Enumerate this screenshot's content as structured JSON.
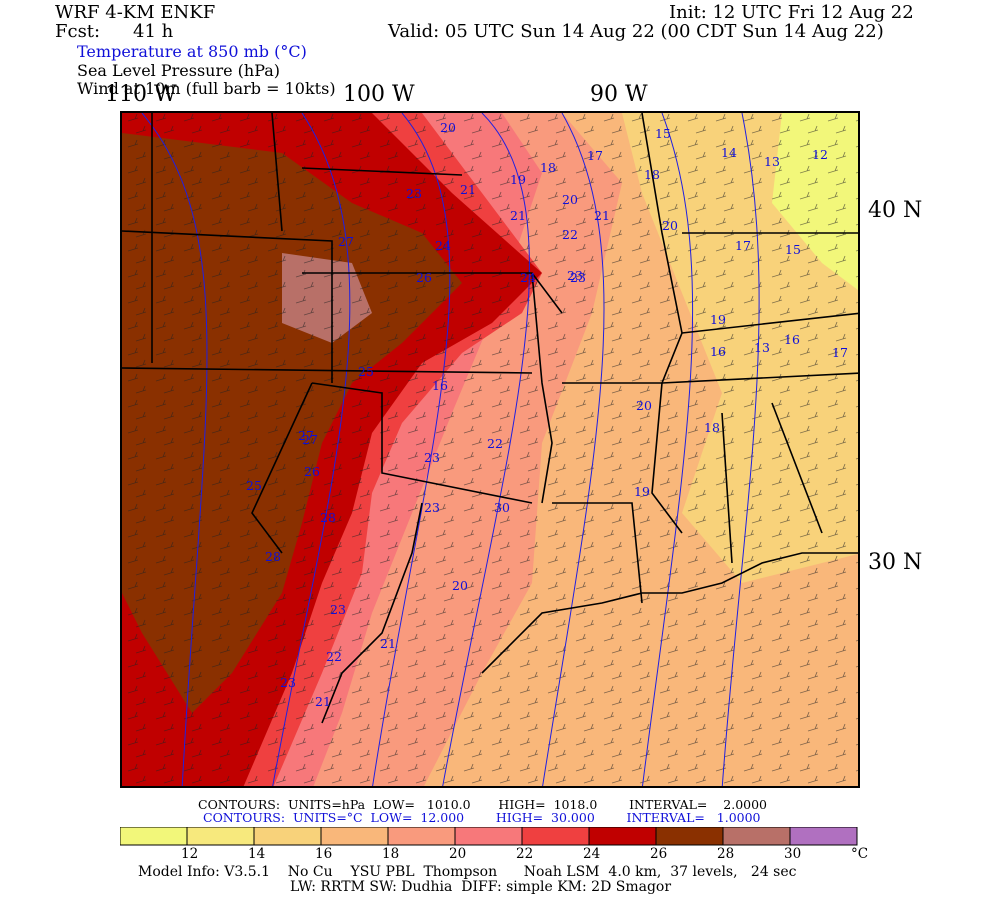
{
  "header": {
    "model": "WRF 4-KM ENKF",
    "fcst_label": "Fcst:",
    "fcst_value": "41 h",
    "init": "Init: 12 UTC Fri 12 Aug 22",
    "valid": "Valid: 05 UTC Sun 14 Aug 22 (00 CDT Sun 14 Aug 22)",
    "field1": "Temperature at 850 mb (°C)",
    "field2": "Sea Level Pressure (hPa)",
    "field3": "Wind at 10m (full barb = 10kts)"
  },
  "axes": {
    "lon_labels": [
      "110 W",
      "100 W",
      "90 W"
    ],
    "lat_labels": [
      "40 N",
      "30 N"
    ]
  },
  "map_labels": {
    "temperature": [
      "20",
      "15",
      "14",
      "13",
      "12",
      "21",
      "19",
      "18",
      "17",
      "18",
      "23",
      "21",
      "20",
      "21",
      "20",
      "17",
      "15",
      "24",
      "22",
      "23",
      "27",
      "26",
      "24",
      "23",
      "19",
      "16",
      "13",
      "17",
      "16",
      "16",
      "25",
      "27",
      "20",
      "18",
      "27",
      "23",
      "22",
      "26",
      "19",
      "25",
      "28",
      "30",
      "23",
      "28",
      "20",
      "21",
      "23",
      "22",
      "23",
      "21"
    ]
  },
  "colors": {
    "t12_14": "#f2f77a",
    "t14_16": "#f8d27a",
    "t16_18": "#f9b77a",
    "t18_20": "#f99a7d",
    "t20_22": "#f7787a",
    "t22_24": "#ef4040",
    "t24_26": "#c00000",
    "t26_28": "#8a3000",
    "t28_30": "#b87068",
    "t30_plus": "#b070c0",
    "contour_blue": "#2020e0",
    "border_black": "#000000"
  },
  "contour_info": {
    "slp": "CONTOURS:  UNITS=hPa  LOW=   1010.0       HIGH=  1018.0        INTERVAL=    2.0000",
    "temp": "CONTOURS:  UNITS=°C  LOW=  12.000        HIGH=  30.000        INTERVAL=   1.0000"
  },
  "colorbar": {
    "ticks": [
      "12",
      "14",
      "16",
      "18",
      "20",
      "22",
      "24",
      "26",
      "28",
      "30"
    ],
    "unit": "°C"
  },
  "footer": {
    "line1": "Model Info: V3.5.1    No Cu    YSU PBL  Thompson      Noah LSM  4.0 km,  37 levels,   24 sec",
    "line2": "LW: RRTM SW: Dudhia  DIFF: simple KM: 2D Smagor"
  }
}
